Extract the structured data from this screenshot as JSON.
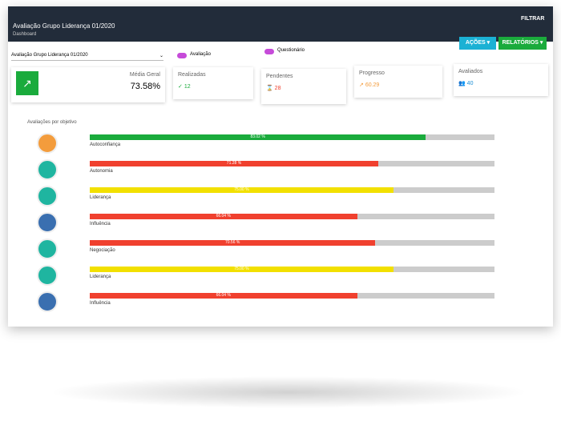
{
  "header": {
    "title": "Avaliação Grupo Liderança 01/2020",
    "subtitle": "Dashboard",
    "filter": "FILTRAR"
  },
  "toolbar": {
    "select": "Avaliação Grupo Liderança 01/2020",
    "toggle_1": "Avaliação",
    "toggle_2": "Questionário",
    "actions": "AÇÕES ▾",
    "reports": "RELATÓRIOS ▾"
  },
  "cards": [
    {
      "label": "Média Geral",
      "value": "73.58%"
    },
    {
      "label": "Realizadas",
      "value": "12"
    },
    {
      "label": "Pendentes",
      "value": "28"
    },
    {
      "label": "Progresso",
      "value": "60.29"
    },
    {
      "label": "Avaliados",
      "value": "40"
    }
  ],
  "objectives": {
    "title": "Avaliações por objetivo",
    "scale": [
      0,
      100
    ],
    "items": [
      {
        "label": "Autoconfiança",
        "value": 83.02,
        "value_label": "83.02 %",
        "color": "#1aab3c"
      },
      {
        "label": "Autonomia",
        "value": 71.28,
        "value_label": "71.28 %",
        "color": "#f0402e"
      },
      {
        "label": "Liderança",
        "value": 75.0,
        "value_label": "75.00 %",
        "color": "#f2e000"
      },
      {
        "label": "Influência",
        "value": 66.04,
        "value_label": "66.04 %",
        "color": "#f0402e"
      },
      {
        "label": "Negociação",
        "value": 70.56,
        "value_label": "70.56 %",
        "color": "#f0402e"
      },
      {
        "label": "Liderança",
        "value": 75.0,
        "value_label": "75.00 %",
        "color": "#f2e000"
      },
      {
        "label": "Influência",
        "value": 66.04,
        "value_label": "66.04 %",
        "color": "#f0402e"
      }
    ]
  }
}
